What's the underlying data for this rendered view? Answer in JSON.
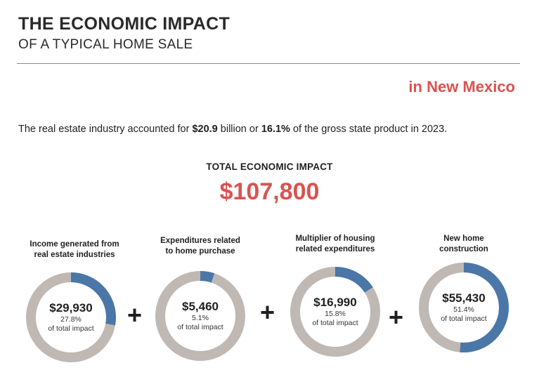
{
  "header": {
    "title": "THE ECONOMIC IMPACT",
    "subtitle": "OF A TYPICAL HOME SALE",
    "region": "in New Mexico"
  },
  "summary": {
    "prefix": "The real estate industry accounted for ",
    "amount": "$20.9",
    "middle": " billion or ",
    "percent": "16.1%",
    "suffix": " of the gross state product in 2023."
  },
  "total": {
    "label": "TOTAL ECONOMIC IMPACT",
    "value": "$107,800"
  },
  "operator_symbol": "+",
  "colors": {
    "accent": "#d9534f",
    "ring_fill": "#4a77a8",
    "ring_track": "#bfb8b3"
  },
  "chart_data": {
    "type": "pie",
    "title": "TOTAL ECONOMIC IMPACT",
    "total": 107800,
    "segments": [
      {
        "label_line1": "Income generated from",
        "label_line2": "real estate industries",
        "amount": "$29,930",
        "value": 29930,
        "percent_text": "27.8%",
        "percent": 27.8,
        "caption": "of total impact"
      },
      {
        "label_line1": "Expenditures related",
        "label_line2": "to home purchase",
        "amount": "$5,460",
        "value": 5460,
        "percent_text": "5.1%",
        "percent": 5.1,
        "caption": "of total impact"
      },
      {
        "label_line1": "Multiplier of housing",
        "label_line2": "related expenditures",
        "amount": "$16,990",
        "value": 16990,
        "percent_text": "15.8%",
        "percent": 15.8,
        "caption": "of total impact"
      },
      {
        "label_line1": "New home",
        "label_line2": "construction",
        "amount": "$55,430",
        "value": 55430,
        "percent_text": "51.4%",
        "percent": 51.4,
        "caption": "of total impact"
      }
    ]
  }
}
